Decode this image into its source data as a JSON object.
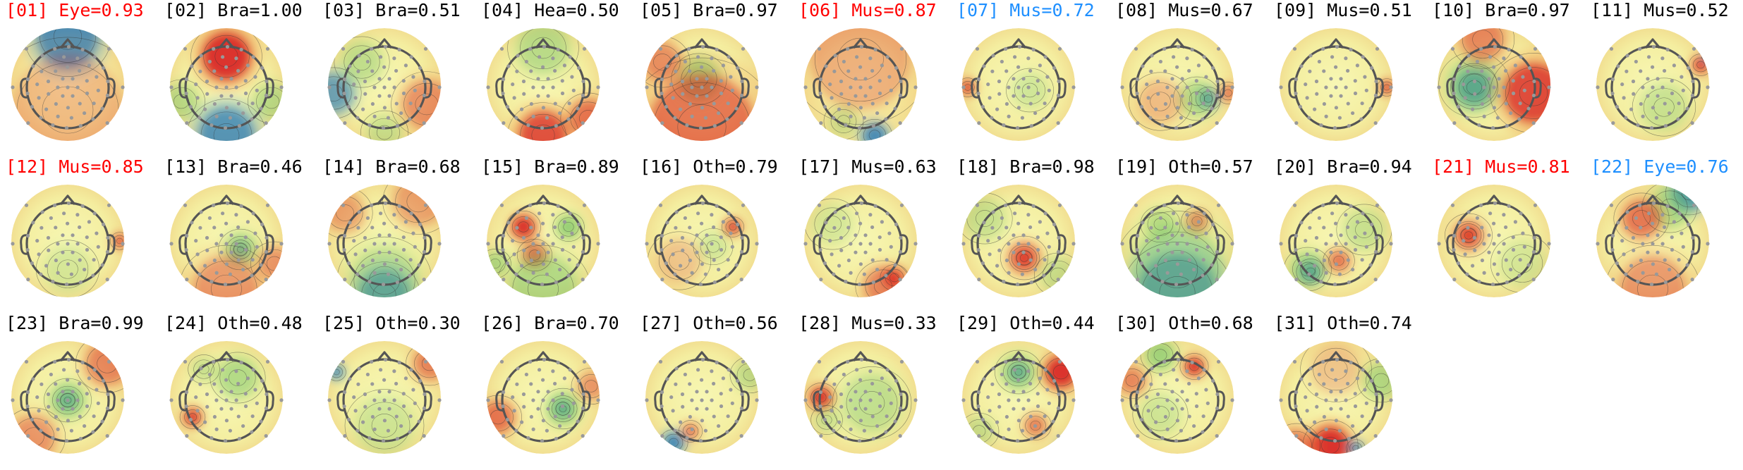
{
  "colors": {
    "normal": "#000000",
    "flag_red": "#ff0000",
    "flag_blue": "#1e8fff",
    "head_outline": "#555555",
    "sensor_dot": "#999999",
    "colormap": "RdYlBu_r (red = positive, yellow-pale = ~0, blue = negative)"
  },
  "components": [
    {
      "label": "[01] Eye=0.93",
      "flag": "red",
      "blobs": [
        [
          "b",
          0.0,
          -0.85,
          0.55,
          0.95
        ],
        [
          "r",
          0.0,
          0.45,
          1.0,
          0.25
        ]
      ]
    },
    {
      "label": "[02] Bra=1.00",
      "flag": "normal",
      "blobs": [
        [
          "r",
          0.0,
          -0.5,
          0.45,
          1.0
        ],
        [
          "b",
          0.0,
          0.9,
          0.5,
          0.85
        ],
        [
          "g",
          -0.8,
          0.3,
          0.3,
          0.4
        ],
        [
          "g",
          0.8,
          0.3,
          0.3,
          0.4
        ]
      ]
    },
    {
      "label": "[03] Bra=0.51",
      "flag": "normal",
      "blobs": [
        [
          "b",
          -0.9,
          0.15,
          0.35,
          0.7
        ],
        [
          "g",
          -0.4,
          -0.4,
          0.35,
          0.35
        ],
        [
          "r",
          0.75,
          0.35,
          0.45,
          0.45
        ],
        [
          "g",
          0.0,
          0.85,
          0.3,
          0.3
        ]
      ]
    },
    {
      "label": "[04] Hea=0.50",
      "flag": "normal",
      "blobs": [
        [
          "r",
          0.0,
          0.9,
          0.45,
          0.8
        ],
        [
          "r",
          0.8,
          0.6,
          0.35,
          0.6
        ],
        [
          "g",
          0.0,
          -0.65,
          0.45,
          0.4
        ]
      ]
    },
    {
      "label": "[05] Bra=0.97",
      "flag": "normal",
      "blobs": [
        [
          "g",
          -0.05,
          -0.1,
          0.35,
          0.7
        ],
        [
          "r",
          0.0,
          0.75,
          0.95,
          0.6
        ],
        [
          "r",
          -0.7,
          -0.4,
          0.35,
          0.45
        ]
      ]
    },
    {
      "label": "[06] Mus=0.87",
      "flag": "red",
      "blobs": [
        [
          "b",
          0.25,
          0.9,
          0.22,
          0.95
        ],
        [
          "g",
          -0.3,
          0.65,
          0.25,
          0.3
        ],
        [
          "r",
          0.0,
          -0.45,
          0.9,
          0.3
        ]
      ]
    },
    {
      "label": "[07] Mus=0.72",
      "flag": "blue",
      "blobs": [
        [
          "r",
          -0.9,
          0.05,
          0.13,
          1.0
        ],
        [
          "g",
          0.2,
          0.1,
          0.3,
          0.25
        ]
      ]
    },
    {
      "label": "[08] Mus=0.67",
      "flag": "normal",
      "blobs": [
        [
          "b",
          0.55,
          0.25,
          0.16,
          0.95
        ],
        [
          "g",
          0.35,
          0.25,
          0.3,
          0.45
        ],
        [
          "r",
          0.9,
          0.15,
          0.15,
          0.6
        ],
        [
          "r",
          -0.3,
          0.3,
          0.4,
          0.25
        ]
      ]
    },
    {
      "label": "[09] Mus=0.51",
      "flag": "normal",
      "blobs": [
        [
          "r",
          0.9,
          0.05,
          0.12,
          1.0
        ]
      ]
    },
    {
      "label": "[10] Bra=0.97",
      "flag": "normal",
      "blobs": [
        [
          "b",
          -0.35,
          0.05,
          0.3,
          1.0
        ],
        [
          "g",
          -0.35,
          0.0,
          0.45,
          0.5
        ],
        [
          "r",
          0.7,
          0.15,
          0.55,
          0.85
        ],
        [
          "r",
          -0.2,
          -0.8,
          0.4,
          0.5
        ]
      ]
    },
    {
      "label": "[11] Mus=0.52",
      "flag": "normal",
      "blobs": [
        [
          "r",
          0.85,
          -0.35,
          0.15,
          0.95
        ],
        [
          "b",
          0.98,
          -0.5,
          0.08,
          0.8
        ],
        [
          "g",
          0.2,
          0.4,
          0.4,
          0.3
        ]
      ]
    },
    {
      "label": "[12] Mus=0.85",
      "flag": "red",
      "blobs": [
        [
          "r",
          0.92,
          0.0,
          0.12,
          0.95
        ],
        [
          "g",
          0.0,
          0.5,
          0.4,
          0.2
        ]
      ]
    },
    {
      "label": "[13] Bra=0.46",
      "flag": "normal",
      "blobs": [
        [
          "b",
          0.25,
          0.15,
          0.13,
          0.95
        ],
        [
          "g",
          0.25,
          0.15,
          0.28,
          0.5
        ],
        [
          "r",
          0.0,
          0.85,
          0.6,
          0.4
        ],
        [
          "r",
          0.85,
          0.4,
          0.3,
          0.4
        ]
      ]
    },
    {
      "label": "[14] Bra=0.68",
      "flag": "normal",
      "blobs": [
        [
          "b",
          0.0,
          0.95,
          0.45,
          0.85
        ],
        [
          "g",
          0.0,
          0.7,
          0.6,
          0.35
        ],
        [
          "r",
          0.6,
          -0.7,
          0.45,
          0.35
        ],
        [
          "r",
          -0.7,
          -0.5,
          0.35,
          0.35
        ]
      ]
    },
    {
      "label": "[15] Bra=0.89",
      "flag": "normal",
      "blobs": [
        [
          "r",
          -0.35,
          -0.25,
          0.22,
          1.0
        ],
        [
          "r",
          -0.15,
          0.25,
          0.22,
          0.75
        ],
        [
          "g",
          0.45,
          -0.25,
          0.2,
          0.7
        ],
        [
          "g",
          0.0,
          0.85,
          0.6,
          0.45
        ],
        [
          "g",
          -0.85,
          0.4,
          0.2,
          0.5
        ]
      ]
    },
    {
      "label": "[16] Oth=0.79",
      "flag": "normal",
      "blobs": [
        [
          "r",
          0.55,
          -0.25,
          0.14,
          1.0
        ],
        [
          "g",
          0.2,
          0.1,
          0.25,
          0.25
        ],
        [
          "r",
          -0.4,
          0.35,
          0.4,
          0.2
        ]
      ]
    },
    {
      "label": "[17] Mus=0.63",
      "flag": "normal",
      "blobs": [
        [
          "r",
          0.6,
          0.65,
          0.18,
          1.0
        ],
        [
          "r",
          0.4,
          0.8,
          0.35,
          0.5
        ],
        [
          "g",
          -0.5,
          -0.3,
          0.35,
          0.2
        ]
      ]
    },
    {
      "label": "[18] Bra=0.98",
      "flag": "normal",
      "blobs": [
        [
          "r",
          0.1,
          0.3,
          0.16,
          1.0
        ],
        [
          "r",
          0.1,
          0.3,
          0.3,
          0.45
        ],
        [
          "g",
          -0.6,
          -0.4,
          0.35,
          0.3
        ],
        [
          "g",
          0.7,
          0.6,
          0.3,
          0.3
        ]
      ]
    },
    {
      "label": "[19] Oth=0.57",
      "flag": "normal",
      "blobs": [
        [
          "b",
          0.0,
          0.92,
          0.7,
          0.9
        ],
        [
          "g",
          -0.3,
          -0.3,
          0.25,
          0.4
        ],
        [
          "r",
          0.35,
          -0.35,
          0.2,
          0.55
        ],
        [
          "g",
          0.0,
          0.5,
          0.8,
          0.4
        ]
      ]
    },
    {
      "label": "[20] Bra=0.94",
      "flag": "normal",
      "blobs": [
        [
          "b",
          -0.45,
          0.55,
          0.18,
          1.0
        ],
        [
          "g",
          -0.5,
          0.5,
          0.3,
          0.5
        ],
        [
          "r",
          0.05,
          0.35,
          0.2,
          0.6
        ],
        [
          "g",
          0.5,
          -0.2,
          0.35,
          0.3
        ]
      ]
    },
    {
      "label": "[21] Mus=0.81",
      "flag": "red",
      "blobs": [
        [
          "r",
          -0.45,
          -0.1,
          0.16,
          1.0
        ],
        [
          "r",
          -0.45,
          -0.1,
          0.3,
          0.35
        ],
        [
          "g",
          0.5,
          0.4,
          0.4,
          0.2
        ]
      ]
    },
    {
      "label": "[22] Eye=0.76",
      "flag": "blue",
      "blobs": [
        [
          "b",
          0.65,
          -0.85,
          0.3,
          1.0
        ],
        [
          "g",
          0.3,
          -0.6,
          0.35,
          0.5
        ],
        [
          "r",
          -0.2,
          -0.4,
          0.35,
          0.6
        ],
        [
          "r",
          0.0,
          0.85,
          0.6,
          0.4
        ]
      ]
    },
    {
      "label": "[23] Bra=0.99",
      "flag": "normal",
      "blobs": [
        [
          "b",
          0.0,
          0.05,
          0.14,
          1.0
        ],
        [
          "g",
          0.0,
          0.05,
          0.3,
          0.55
        ],
        [
          "r",
          0.7,
          -0.6,
          0.4,
          0.5
        ],
        [
          "r",
          -0.6,
          0.7,
          0.4,
          0.4
        ]
      ]
    },
    {
      "label": "[24] Oth=0.48",
      "flag": "normal",
      "blobs": [
        [
          "r",
          -0.6,
          0.35,
          0.16,
          1.0
        ],
        [
          "g",
          0.2,
          -0.35,
          0.35,
          0.45
        ],
        [
          "g",
          -0.4,
          -0.5,
          0.2,
          0.3
        ]
      ]
    },
    {
      "label": "[25] Oth=0.30",
      "flag": "normal",
      "blobs": [
        [
          "b",
          -0.85,
          -0.45,
          0.12,
          1.0
        ],
        [
          "r",
          0.8,
          -0.6,
          0.3,
          0.5
        ],
        [
          "g",
          0.0,
          0.5,
          0.5,
          0.25
        ]
      ]
    },
    {
      "label": "[26] Bra=0.70",
      "flag": "normal",
      "blobs": [
        [
          "b",
          0.35,
          0.2,
          0.14,
          1.0
        ],
        [
          "g",
          0.35,
          0.2,
          0.28,
          0.55
        ],
        [
          "r",
          -0.8,
          0.35,
          0.3,
          0.6
        ],
        [
          "r",
          0.85,
          -0.2,
          0.25,
          0.4
        ]
      ]
    },
    {
      "label": "[27] Oth=0.56",
      "flag": "normal",
      "blobs": [
        [
          "b",
          -0.5,
          0.8,
          0.18,
          1.0
        ],
        [
          "r",
          -0.2,
          0.6,
          0.15,
          0.6
        ],
        [
          "g",
          0.85,
          -0.4,
          0.25,
          0.35
        ]
      ]
    },
    {
      "label": "[28] Mus=0.33",
      "flag": "normal",
      "blobs": [
        [
          "r",
          -0.7,
          0.0,
          0.2,
          1.0
        ],
        [
          "g",
          0.2,
          0.1,
          0.5,
          0.35
        ],
        [
          "g",
          -0.6,
          0.4,
          0.2,
          0.3
        ]
      ]
    },
    {
      "label": "[29] Oth=0.44",
      "flag": "normal",
      "blobs": [
        [
          "r",
          0.75,
          -0.45,
          0.3,
          1.0
        ],
        [
          "b",
          0.0,
          -0.45,
          0.14,
          1.0
        ],
        [
          "g",
          0.0,
          -0.45,
          0.3,
          0.5
        ],
        [
          "r",
          0.3,
          0.5,
          0.2,
          0.55
        ],
        [
          "b",
          0.85,
          0.9,
          0.15,
          0.8
        ],
        [
          "g",
          -0.7,
          0.6,
          0.25,
          0.3
        ]
      ]
    },
    {
      "label": "[30] Oth=0.68",
      "flag": "normal",
      "blobs": [
        [
          "r",
          0.3,
          -0.55,
          0.18,
          1.0
        ],
        [
          "g",
          -0.3,
          -0.75,
          0.25,
          0.6
        ],
        [
          "r",
          -0.8,
          -0.3,
          0.25,
          0.5
        ],
        [
          "g",
          -0.3,
          0.3,
          0.35,
          0.25
        ]
      ]
    },
    {
      "label": "[31] Oth=0.74",
      "flag": "normal",
      "blobs": [
        [
          "r",
          -0.1,
          0.85,
          0.35,
          1.0
        ],
        [
          "b",
          0.35,
          0.9,
          0.12,
          0.9
        ],
        [
          "r",
          -0.7,
          0.85,
          0.3,
          0.5
        ],
        [
          "g",
          0.8,
          -0.3,
          0.3,
          0.45
        ],
        [
          "r",
          0.0,
          -0.5,
          0.45,
          0.2
        ]
      ]
    }
  ]
}
